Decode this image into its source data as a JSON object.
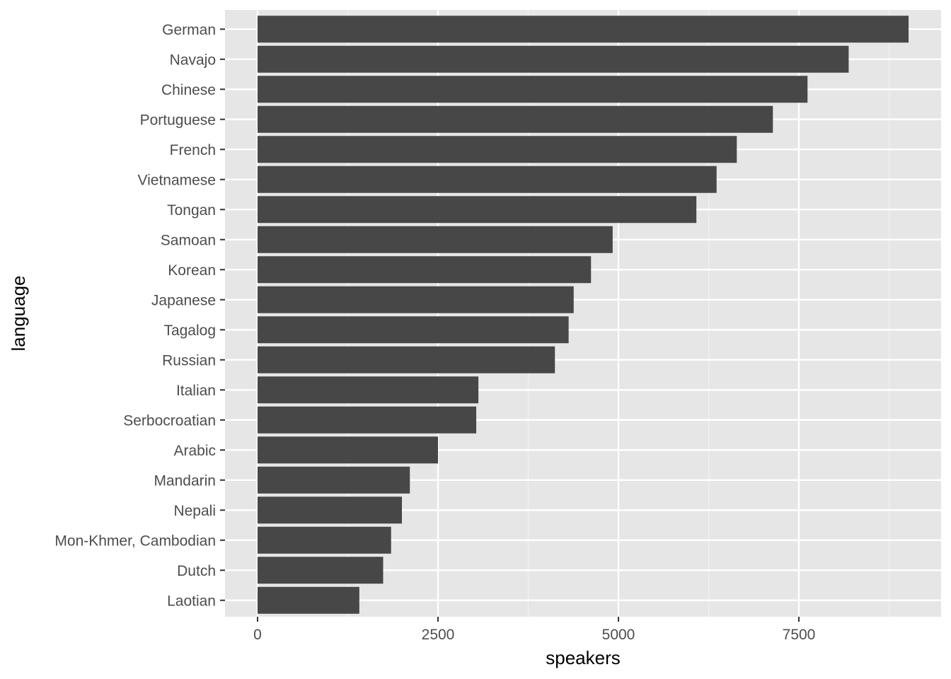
{
  "chart_data": {
    "type": "bar",
    "orientation": "horizontal",
    "title": "",
    "xlabel": "speakers",
    "ylabel": "language",
    "xlim": [
      -900,
      18982
    ],
    "x_ticks": [
      0,
      2500,
      5000,
      7500
    ],
    "x_tick_labels": [
      "0",
      "2500",
      "5000",
      "7500"
    ],
    "grid": true,
    "categories": [
      "German",
      "Navajo",
      "Chinese",
      "Portuguese",
      "French",
      "Vietnamese",
      "Tongan",
      "Samoan",
      "Korean",
      "Japanese",
      "Tagalog",
      "Russian",
      "Italian",
      "Serbocroatian",
      "Arabic",
      "Mandarin",
      "Nepali",
      "Mon-Khmer, Cambodian",
      "Dutch",
      "Laotian"
    ],
    "values": [
      9020,
      8190,
      7620,
      7140,
      6640,
      6360,
      6080,
      4920,
      4620,
      4380,
      4310,
      4120,
      3060,
      3030,
      2500,
      2110,
      2000,
      1850,
      1740,
      1410
    ],
    "colors": {
      "bar": "#474747",
      "panel": "#e6e6e6",
      "grid_major": "#ffffff",
      "grid_minor": "#f1f1f1",
      "tick_text": "#4d4d4d",
      "tick_mark": "#333333"
    }
  }
}
